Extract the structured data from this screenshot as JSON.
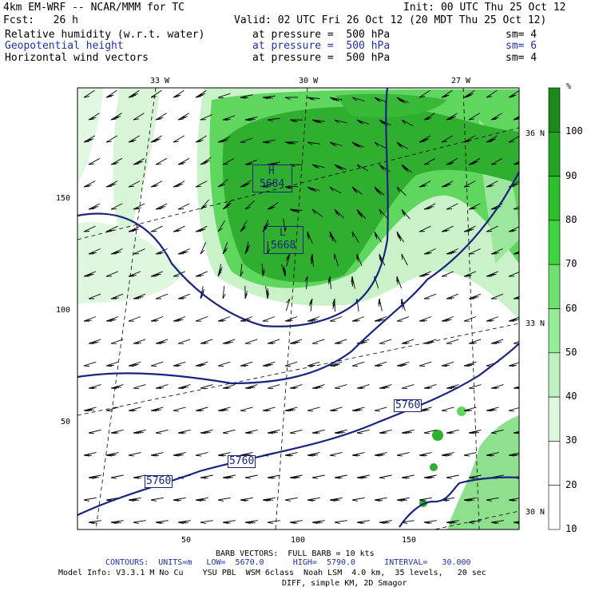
{
  "header": {
    "model": "4km EM-WRF -- NCAR/MMM for TC",
    "init": "Init: 00 UTC Thu 25 Oct 12",
    "fcst": "Fcst:   26 h",
    "valid": "Valid: 02 UTC Fri 26 Oct 12 (20 MDT Thu 25 Oct 12)",
    "fields": [
      {
        "name": "Relative humidity (w.r.t. water)",
        "pressure": "at pressure =  500 hPa",
        "sm": "sm= 4"
      },
      {
        "name": "Geopotential height",
        "pressure": "at pressure =  500 hPa",
        "sm": "sm= 6"
      },
      {
        "name": "Horizontal wind vectors",
        "pressure": "at pressure =  500 hPa",
        "sm": "sm= 4"
      }
    ]
  },
  "map": {
    "top_lon_labels": [
      "33 W",
      "30 W",
      "27 W"
    ],
    "right_lat_labels": [
      "36 N",
      "33 N",
      "30 N"
    ],
    "left_grid_labels": [
      "150",
      "100",
      "50"
    ],
    "bottom_grid_labels": [
      "50",
      "100",
      "150"
    ],
    "highs": [
      {
        "label": "H",
        "value": "5684"
      }
    ],
    "lows": [
      {
        "label": "L",
        "value": "5668"
      }
    ],
    "contour_labels": [
      "5760",
      "5760",
      "5760"
    ]
  },
  "colorbar": {
    "unit": "%",
    "ticks": [
      "100",
      "90",
      "80",
      "70",
      "60",
      "50",
      "40",
      "30",
      "20",
      "10"
    ],
    "colors": [
      "#1a8a1a",
      "#22a522",
      "#2cbf2c",
      "#3fd33f",
      "#6fe16f",
      "#96eb96",
      "#bff2bf",
      "#def8de",
      "#ffffff",
      "#ffffff"
    ]
  },
  "footer": {
    "barb": "BARB VECTORS:  FULL BARB = 10 kts",
    "contours": "CONTOURS:  UNITS=m   LOW=  5670.0      HIGH=  5790.0      INTERVAL=   30.000",
    "model_info": "Model Info: V3.3.1 M No Cu    YSU PBL  WSM 6class  Noah LSM  4.0 km,  35 levels,   20 sec",
    "diff": "DIFF, simple KM, 2D Smagor"
  }
}
